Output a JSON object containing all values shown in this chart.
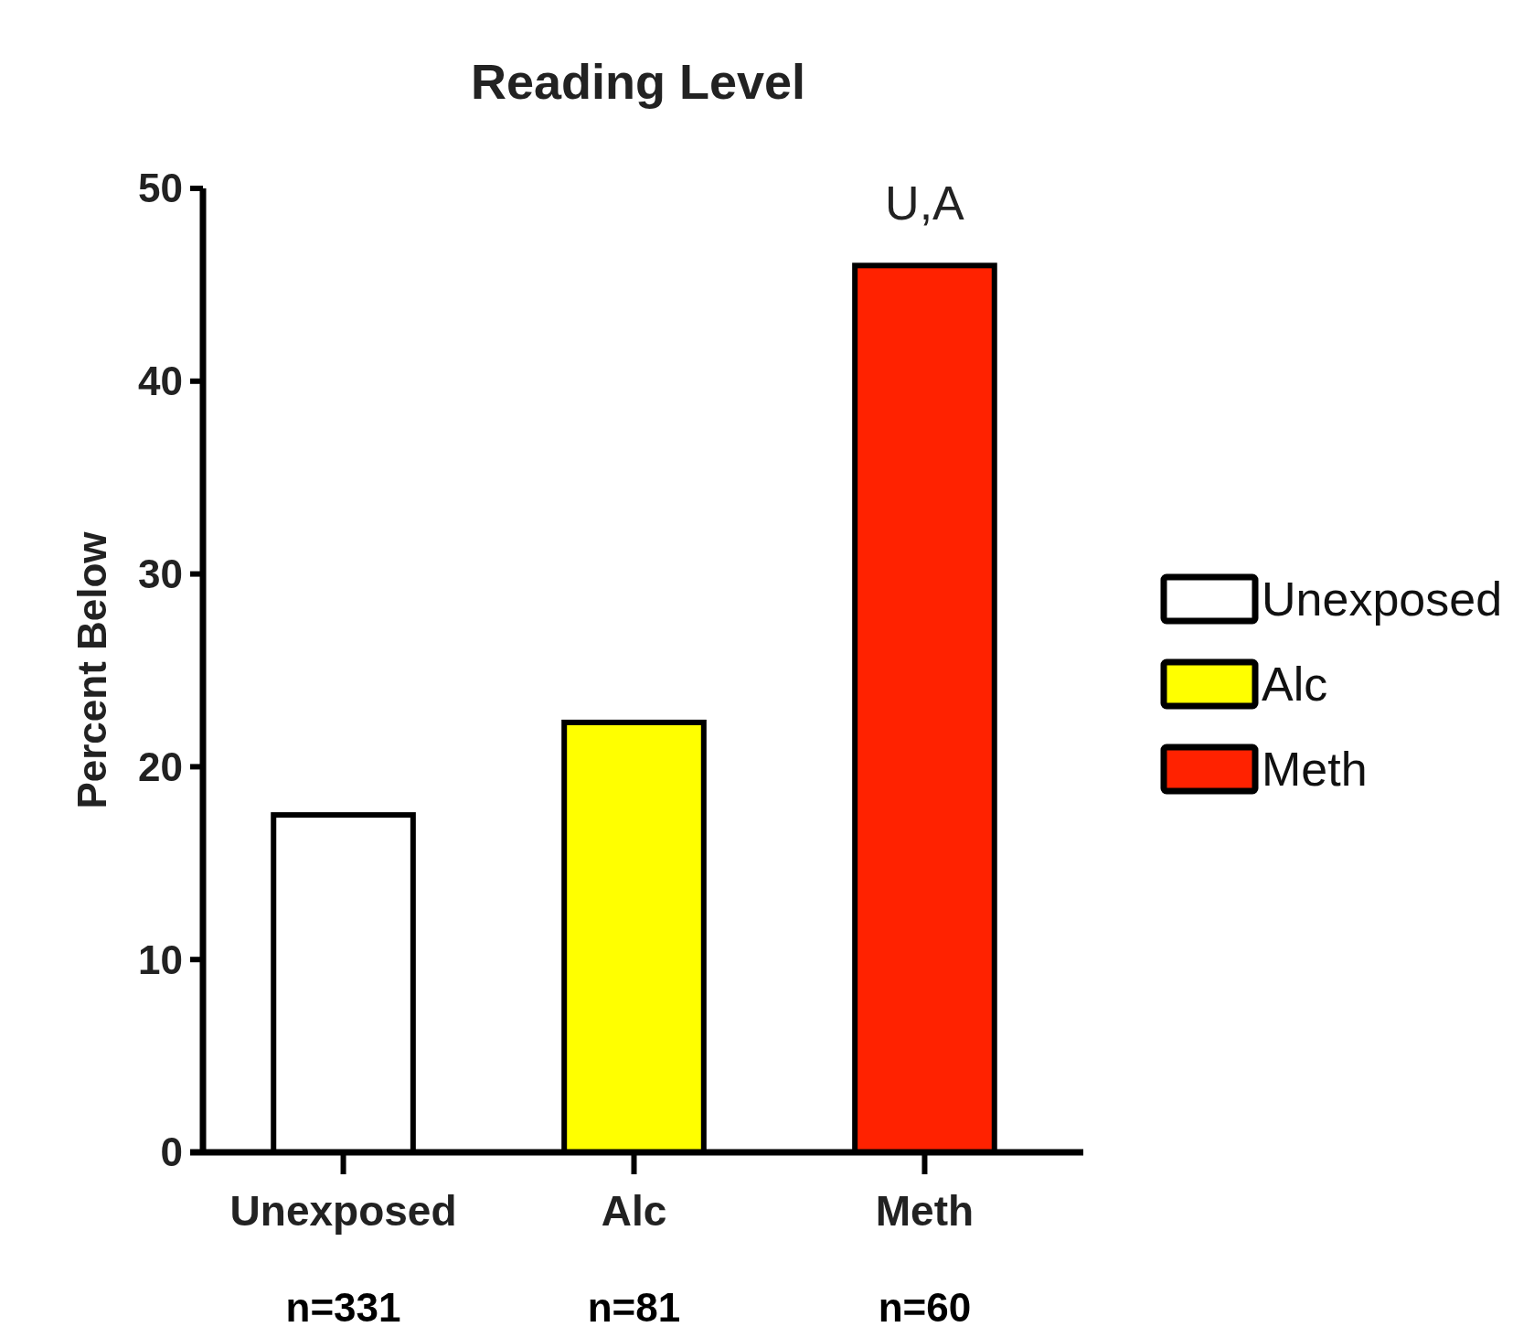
{
  "chart_data": {
    "type": "bar",
    "title": "Reading Level",
    "ylabel": "Percent Below",
    "categories": [
      "Unexposed",
      "Alc",
      "Meth"
    ],
    "series": [
      {
        "name": "Unexposed",
        "color": "#ffffff",
        "values": [
          17.5,
          null,
          null
        ]
      },
      {
        "name": "Alc",
        "color": "#ffff00",
        "values": [
          null,
          22.3,
          null
        ]
      },
      {
        "name": "Meth",
        "color": "#ff2200",
        "values": [
          null,
          null,
          46.0
        ]
      }
    ],
    "stacked": true,
    "ylim": [
      0,
      50
    ],
    "yticks": [
      0,
      10,
      20,
      30,
      40,
      50
    ],
    "legend": "right",
    "annotations": [
      {
        "text": "U,A",
        "x": "Meth",
        "y": 46
      },
      "n=331",
      "n=81",
      "n=60"
    ]
  }
}
